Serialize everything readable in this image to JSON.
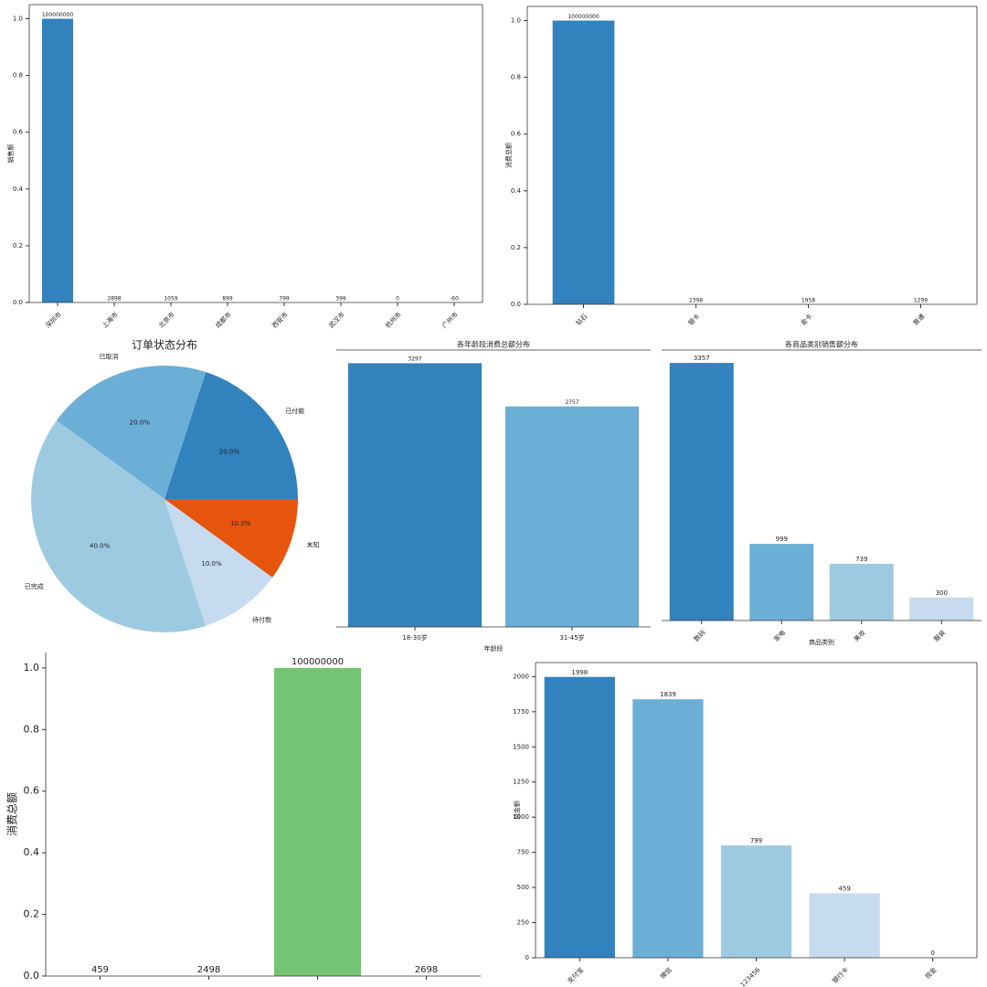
{
  "chart_data": [
    {
      "type": "bar",
      "ylabel": "销售额",
      "categories": [
        "深圳市",
        "上海市",
        "北京市",
        "成都市",
        "西安市",
        "武汉市",
        "杭州市",
        "广州市"
      ],
      "values": [
        100000000,
        2898,
        1059,
        899,
        799,
        399,
        0,
        -60
      ],
      "colors": [
        "#3182bd"
      ],
      "ylim": [
        0,
        105000000
      ],
      "yticks": [
        {
          "value": 0,
          "label": "0.0"
        },
        {
          "value": 20000000,
          "label": "0.2"
        },
        {
          "value": 40000000,
          "label": "0.4"
        },
        {
          "value": 60000000,
          "label": "0.6"
        },
        {
          "value": 80000000,
          "label": "0.8"
        },
        {
          "value": 100000000,
          "label": "1.0"
        }
      ]
    },
    {
      "type": "bar",
      "ylabel": "消费总额",
      "categories": [
        "钻石",
        "银卡",
        "金卡",
        "普通"
      ],
      "values": [
        100000000,
        2398,
        1958,
        1299
      ],
      "colors": [
        "#3182bd"
      ],
      "ylim": [
        0,
        105000000
      ],
      "yticks": [
        {
          "value": 0,
          "label": "0.0"
        },
        {
          "value": 20000000,
          "label": "0.2"
        },
        {
          "value": 40000000,
          "label": "0.4"
        },
        {
          "value": 60000000,
          "label": "0.6"
        },
        {
          "value": 80000000,
          "label": "0.8"
        },
        {
          "value": 100000000,
          "label": "1.0"
        }
      ]
    },
    {
      "type": "pie",
      "title": "订单状态分布",
      "categories": [
        "已付款",
        "已取消",
        "已完成",
        "待付款",
        "未知"
      ],
      "values": [
        20,
        20,
        40,
        10,
        10
      ],
      "value_labels": [
        "20.0%",
        "20.0%",
        "40.0%",
        "10.0%",
        "10.0%"
      ],
      "colors": [
        "#3182bd",
        "#6baed6",
        "#9ecae1",
        "#c6dbef",
        "#e6550d"
      ]
    },
    {
      "type": "bar",
      "title": "各年龄段消费总额分布",
      "xlabel": "年龄段",
      "categories": [
        "18-30岁",
        "31-45岁"
      ],
      "values": [
        3297,
        2757
      ],
      "colors": [
        "#3182bd",
        "#6baed6"
      ],
      "ylim": [
        0,
        3462
      ]
    },
    {
      "type": "bar",
      "title": "各商品类别销售额分布",
      "xlabel": "商品类别",
      "categories": [
        "数码",
        "家电",
        "美妆",
        "服装"
      ],
      "values": [
        3357,
        999,
        739,
        300
      ],
      "colors": [
        "#3182bd",
        "#6baed6",
        "#9ecae1",
        "#c6dbef"
      ],
      "ylim": [
        0,
        3525
      ]
    },
    {
      "type": "bar",
      "ylabel": "消费总额",
      "categories": [
        null,
        null,
        null,
        null
      ],
      "values": [
        459,
        2498,
        100000000,
        2698
      ],
      "colors": [
        "#74c476"
      ],
      "ylim": [
        0,
        105000000
      ],
      "yticks": [
        {
          "value": 0,
          "label": "0.0"
        },
        {
          "value": 20000000,
          "label": "0.2"
        },
        {
          "value": 40000000,
          "label": "0.4"
        },
        {
          "value": 60000000,
          "label": "0.6"
        },
        {
          "value": 80000000,
          "label": "0.8"
        },
        {
          "value": 100000000,
          "label": "1.0"
        }
      ]
    },
    {
      "type": "bar",
      "ylabel": "总金额",
      "categories": [
        "支付宝",
        "微信",
        "123456",
        "银行卡",
        "现金"
      ],
      "values": [
        1998,
        1839,
        799,
        459,
        0
      ],
      "colors": [
        "#3182bd",
        "#6baed6",
        "#9ecae1",
        "#c6dbef",
        "#e6550d"
      ],
      "ylim": [
        0,
        2100
      ],
      "yticks": [
        0,
        250,
        500,
        750,
        1000,
        1250,
        1500,
        1750,
        2000
      ]
    }
  ]
}
